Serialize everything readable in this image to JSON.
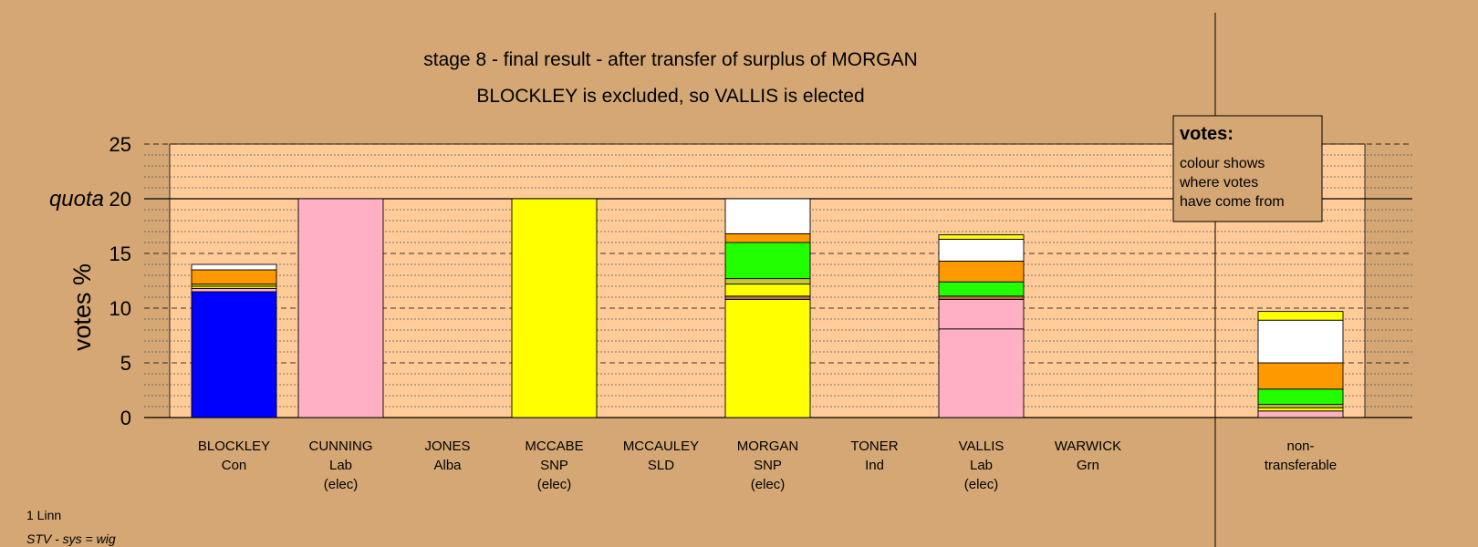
{
  "chart_data": {
    "type": "bar",
    "stacked": true,
    "title": "stage 8 - final result - after transfer of surplus of MORGAN",
    "subtitle": "BLOCKLEY is excluded, so VALLIS is elected",
    "ylabel": "votes %",
    "ylim": [
      0,
      25
    ],
    "yticks": [
      0,
      5,
      10,
      15,
      20,
      25
    ],
    "quota": {
      "label": "quota",
      "value": 20
    },
    "colors": {
      "page_bg": "#d4a774",
      "plot_bg": "#ffcc99",
      "Con": "#0000ff",
      "Lab": "#ffb0c4",
      "SNP": "#ffff00",
      "SNP_other": "#c8c832",
      "Grn": "#22ff00",
      "SLD": "#ff9900",
      "Ind": "#ffffff",
      "Alba": "#c07040"
    },
    "categories": [
      {
        "name": "BLOCKLEY",
        "party": "Con",
        "note": "",
        "segments": [
          {
            "source": "Con",
            "value": 11.5,
            "color": "#0000ff"
          },
          {
            "source": "Lab",
            "value": 0.3,
            "color": "#ffb0c4"
          },
          {
            "source": "SNP",
            "value": 0.2,
            "color": "#ffff00"
          },
          {
            "source": "SNP_other",
            "value": 0.2,
            "color": "#c8c832"
          },
          {
            "source": "SLD",
            "value": 1.3,
            "color": "#ff9900"
          },
          {
            "source": "Ind",
            "value": 0.5,
            "color": "#ffffff"
          }
        ]
      },
      {
        "name": "CUNNING",
        "party": "Lab",
        "note": "(elec)",
        "segments": [
          {
            "source": "Lab",
            "value": 20,
            "color": "#ffb0c4"
          }
        ]
      },
      {
        "name": "JONES",
        "party": "Alba",
        "note": "",
        "segments": []
      },
      {
        "name": "MCCABE",
        "party": "SNP",
        "note": "(elec)",
        "segments": [
          {
            "source": "SNP",
            "value": 20,
            "color": "#ffff00"
          }
        ]
      },
      {
        "name": "MCCAULEY",
        "party": "SLD",
        "note": "",
        "segments": []
      },
      {
        "name": "MORGAN",
        "party": "SNP",
        "note": "(elec)",
        "segments": [
          {
            "source": "SNP",
            "value": 10.8,
            "color": "#ffff00"
          },
          {
            "source": "Alba",
            "value": 0.3,
            "color": "#c07040"
          },
          {
            "source": "SNP",
            "value": 1.1,
            "color": "#ffff00"
          },
          {
            "source": "SNP_other",
            "value": 0.5,
            "color": "#c8c832"
          },
          {
            "source": "Grn",
            "value": 3.3,
            "color": "#22ff00"
          },
          {
            "source": "SLD",
            "value": 0.8,
            "color": "#ff9900"
          },
          {
            "source": "Ind",
            "value": 3.2,
            "color": "#ffffff"
          }
        ]
      },
      {
        "name": "TONER",
        "party": "Ind",
        "note": "",
        "segments": []
      },
      {
        "name": "VALLIS",
        "party": "Lab",
        "note": "(elec)",
        "segments": [
          {
            "source": "Lab",
            "value": 8.1,
            "color": "#ffb0c4"
          },
          {
            "source": "Lab",
            "value": 2.7,
            "color": "#ffb0c4"
          },
          {
            "source": "Alba",
            "value": 0.3,
            "color": "#c07040"
          },
          {
            "source": "Grn",
            "value": 1.3,
            "color": "#22ff00"
          },
          {
            "source": "SLD",
            "value": 1.9,
            "color": "#ff9900"
          },
          {
            "source": "Ind",
            "value": 2.0,
            "color": "#ffffff"
          },
          {
            "source": "SNP",
            "value": 0.4,
            "color": "#ffff00"
          }
        ]
      },
      {
        "name": "WARWICK",
        "party": "Grn",
        "note": "",
        "segments": []
      }
    ],
    "nontransferable": {
      "label_line1": "non-",
      "label_line2": "transferable",
      "segments": [
        {
          "source": "Lab",
          "value": 0.6,
          "color": "#ffb0c4"
        },
        {
          "source": "SNP",
          "value": 0.3,
          "color": "#ffff00"
        },
        {
          "source": "SNP_other",
          "value": 0.3,
          "color": "#c8c832"
        },
        {
          "source": "Grn",
          "value": 1.4,
          "color": "#22ff00"
        },
        {
          "source": "SLD",
          "value": 2.4,
          "color": "#ff9900"
        },
        {
          "source": "Ind",
          "value": 3.9,
          "color": "#ffffff"
        },
        {
          "source": "SNP",
          "value": 0.8,
          "color": "#ffff00"
        }
      ]
    },
    "legend": {
      "title": "votes:",
      "lines": [
        "colour shows",
        "where votes",
        "have come from"
      ],
      "placement": "top-right"
    }
  },
  "footer": {
    "ward": "1 Linn",
    "system": "STV - sys = wig"
  }
}
